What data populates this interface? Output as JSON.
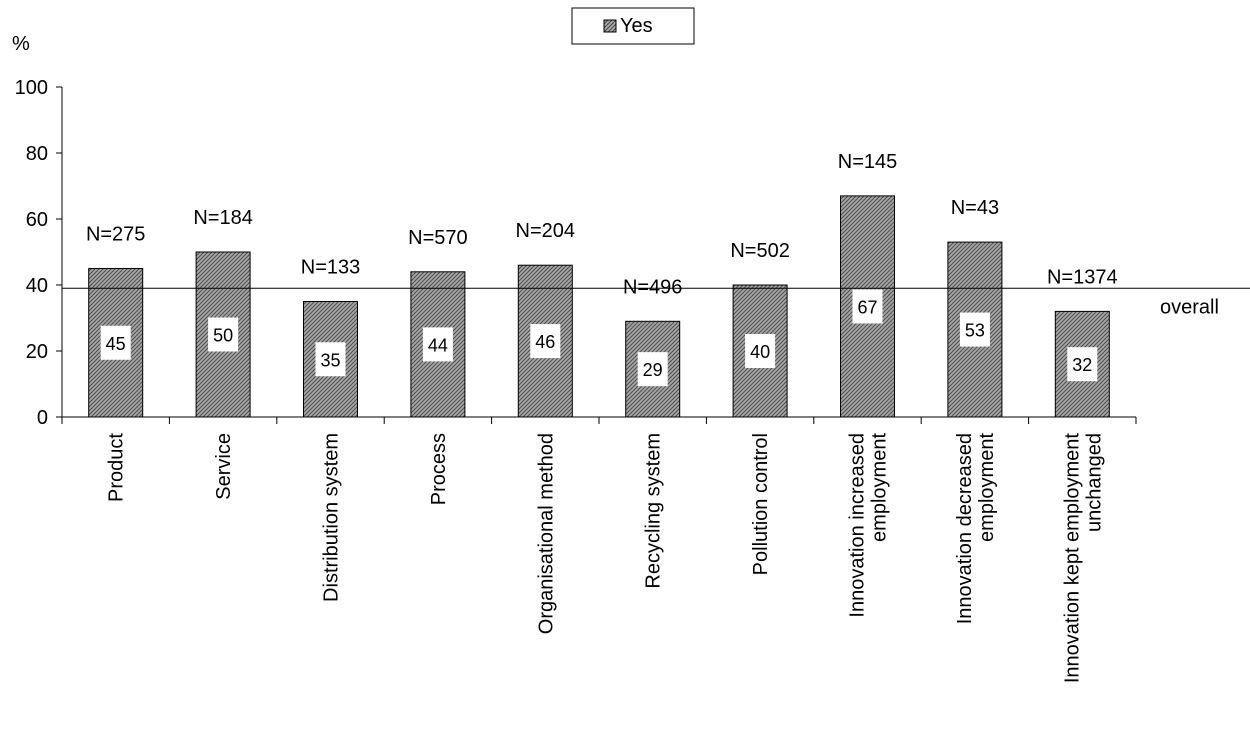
{
  "chart_data": {
    "type": "bar",
    "title": "",
    "xlabel": "",
    "ylabel": "%",
    "ylim": [
      0,
      100
    ],
    "yticks": [
      0,
      20,
      40,
      60,
      80,
      100
    ],
    "grid": false,
    "legend_position": "top-center",
    "categories": [
      "Product",
      "Service",
      "Distribution system",
      "Process",
      "Organisational method",
      "Recycling system",
      "Pollution control",
      "Innovation increased employment",
      "Innovation decreased employment",
      "Innovation kept employment unchanged"
    ],
    "category_label_lines": [
      [
        "Product"
      ],
      [
        "Service"
      ],
      [
        "Distribution system"
      ],
      [
        "Process"
      ],
      [
        "Organisational method"
      ],
      [
        "Recycling system"
      ],
      [
        "Pollution control"
      ],
      [
        "Innovation increased",
        "employment"
      ],
      [
        "Innovation decreased",
        "employment"
      ],
      [
        "Innovation kept employment",
        "unchanged"
      ]
    ],
    "series": [
      {
        "name": "Yes",
        "values": [
          45,
          50,
          35,
          44,
          46,
          29,
          40,
          67,
          53,
          32
        ],
        "data_labels": [
          "45",
          "50",
          "35",
          "44",
          "46",
          "29",
          "40",
          "67",
          "53",
          "32"
        ],
        "color": "#8c8c8c",
        "pattern": "diagonal-hatch"
      }
    ],
    "annotations": [
      "N=275",
      "N=184",
      "N=133",
      "N=570",
      "N=204",
      "N=496",
      "N=502",
      "N=145",
      "N=43",
      "N=1374"
    ],
    "reference_line": {
      "value": 39,
      "label": "overall"
    }
  }
}
